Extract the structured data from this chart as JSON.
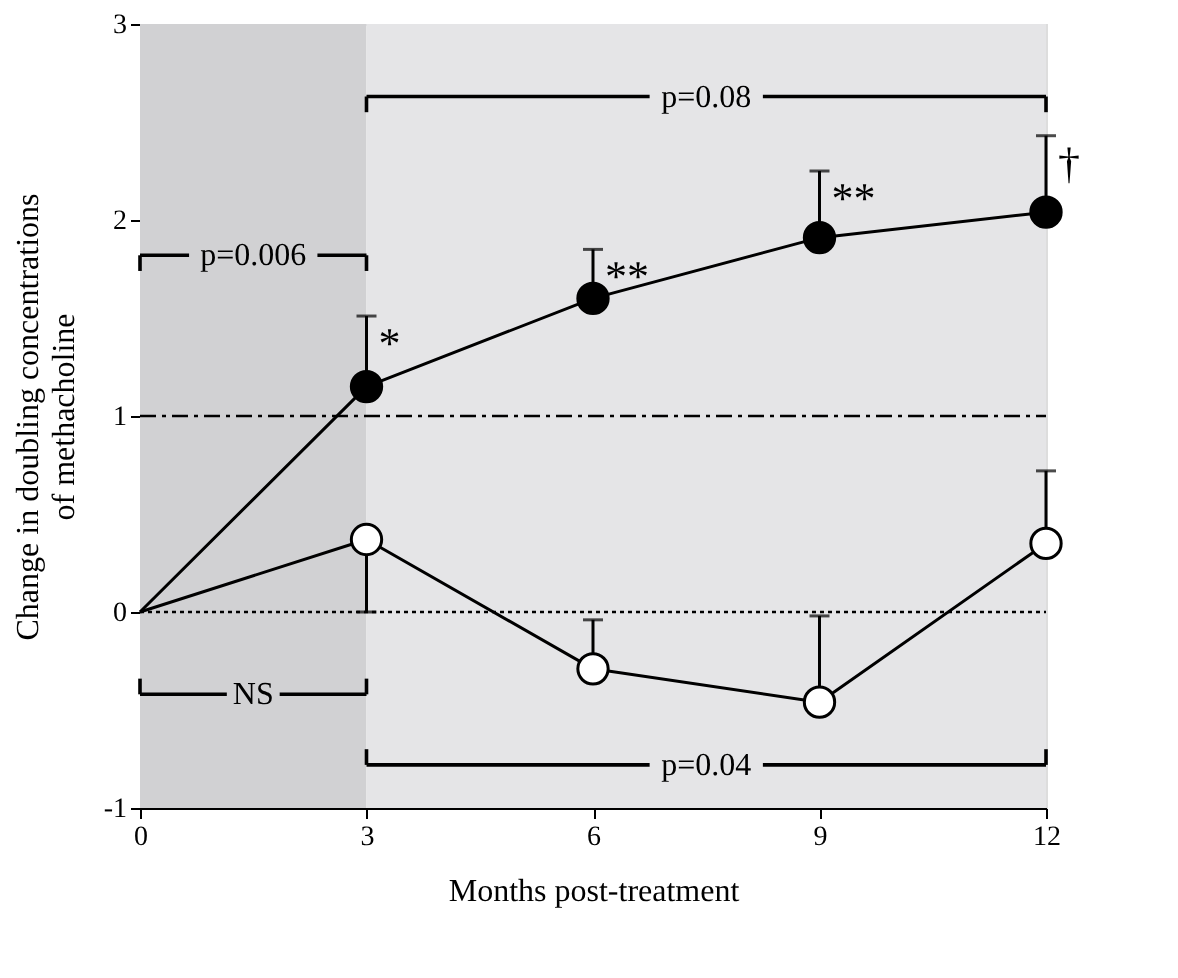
{
  "chart_data": {
    "type": "line",
    "xlabel": "Months post-treatment",
    "ylabel": "Change in doubling concentrations\nof methacholine",
    "x": [
      0,
      3,
      6,
      9,
      12
    ],
    "xlim": [
      0,
      12
    ],
    "xticks": [
      0,
      3,
      6,
      9,
      12
    ],
    "ylim": [
      -1,
      3
    ],
    "yticks": [
      -1,
      0,
      1,
      2,
      3
    ],
    "grid": false,
    "marker": "circle",
    "line_style": "solid",
    "series": [
      {
        "color": "#000000",
        "values": [
          0,
          1.15,
          1.6,
          1.91,
          2.04
        ],
        "errors": [
          null,
          [
            1.15,
            1.51
          ],
          [
            1.6,
            1.85
          ],
          [
            1.91,
            2.25
          ],
          [
            2.04,
            2.43
          ]
        ]
      },
      {
        "color": "#ffffff",
        "values": [
          0,
          0.37,
          -0.29,
          -0.46,
          0.35
        ],
        "errors": [
          null,
          [
            0,
            0.37
          ],
          [
            -0.29,
            -0.04
          ],
          [
            -0.46,
            -0.02
          ],
          [
            0.35,
            0.72
          ]
        ]
      }
    ],
    "ref_lines": [
      {
        "axis": "y",
        "value": 1,
        "line_style": "dashdot",
        "color": "#000000"
      },
      {
        "axis": "y",
        "value": 0,
        "line_style": "dotted",
        "color": "#000000"
      }
    ],
    "bands": [
      {
        "axis": "x",
        "from": 0,
        "to": 3,
        "color": "#d1d1d3"
      },
      {
        "axis": "x",
        "from": 3,
        "to": 12,
        "color": "#e5e5e7"
      }
    ],
    "annotations": [
      {
        "text": "*",
        "x": 3,
        "y": 1.51
      },
      {
        "text": "**",
        "x": 6,
        "y": 1.85
      },
      {
        "text": "**",
        "x": 9,
        "y": 2.25
      },
      {
        "text": "†",
        "x": 12,
        "y": 2.43
      },
      {
        "text": "p=0.006",
        "x": 3,
        "y": 1.82
      },
      {
        "text": "p=0.08",
        "x": 12,
        "y": 2.63
      },
      {
        "text": "NS",
        "x": 3,
        "y": -0.42
      },
      {
        "text": "p=0.04",
        "x": 12,
        "y": -0.78
      }
    ]
  }
}
